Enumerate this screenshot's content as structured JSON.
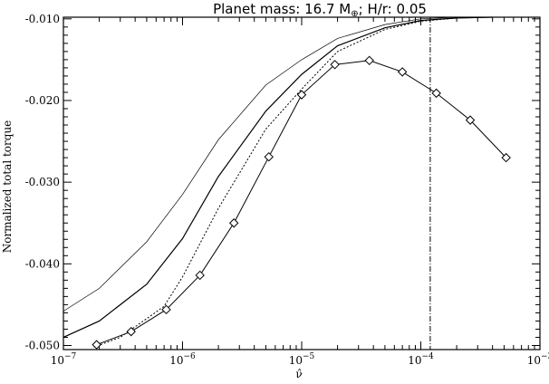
{
  "chart_data": {
    "type": "line",
    "title": {
      "prefix": "Planet mass: 16.7 M",
      "subscript": "⊕",
      "suffix": "; H/r: 0.05"
    },
    "xlabel": "ν̂",
    "ylabel": "Normalized total torque",
    "x_scale": "log",
    "xlim": [
      1e-07,
      0.001
    ],
    "ylim": [
      -0.0505,
      -0.0098
    ],
    "x_ticks": [
      {
        "value": 1e-07,
        "base": "10",
        "exp": "−7"
      },
      {
        "value": 1e-06,
        "base": "10",
        "exp": "−6"
      },
      {
        "value": 1e-05,
        "base": "10",
        "exp": "−5"
      },
      {
        "value": 0.0001,
        "base": "10",
        "exp": "−4"
      },
      {
        "value": 0.001,
        "base": "10",
        "exp": "−3"
      }
    ],
    "y_ticks": [
      {
        "value": -0.01,
        "label": "-0.010"
      },
      {
        "value": -0.02,
        "label": "-0.020"
      },
      {
        "value": -0.03,
        "label": "-0.030"
      },
      {
        "value": -0.04,
        "label": "-0.040"
      },
      {
        "value": -0.05,
        "label": "-0.050"
      }
    ],
    "grid": false,
    "vertical_line": {
      "x": 0.00012,
      "style": "dash-dot"
    },
    "series": [
      {
        "style": "thin-solid",
        "markers": false,
        "x": [
          1e-07,
          2e-07,
          5e-07,
          1e-06,
          2e-06,
          5e-06,
          1e-05,
          2e-05,
          5e-05,
          0.0001,
          0.0002,
          0.0004
        ],
        "y": [
          -0.0458,
          -0.043,
          -0.0373,
          -0.0315,
          -0.0248,
          -0.0181,
          -0.015,
          -0.0124,
          -0.0107,
          -0.01,
          -0.0098,
          -0.0098
        ]
      },
      {
        "style": "solid",
        "markers": false,
        "x": [
          1e-07,
          2e-07,
          5e-07,
          1e-06,
          2e-06,
          5e-06,
          1e-05,
          2e-05,
          5e-05,
          0.0001,
          0.0002,
          0.0004
        ],
        "y": [
          -0.049,
          -0.047,
          -0.0425,
          -0.0369,
          -0.0293,
          -0.0213,
          -0.0168,
          -0.0133,
          -0.0111,
          -0.0102,
          -0.0099,
          -0.0098
        ]
      },
      {
        "style": "dotted",
        "markers": false,
        "x": [
          1.8e-07,
          3e-07,
          7e-07,
          1e-06,
          2e-06,
          5e-06,
          1e-05,
          2e-05,
          5e-05,
          0.0001,
          0.0002,
          0.0004
        ],
        "y": [
          -0.0502,
          -0.049,
          -0.0452,
          -0.0416,
          -0.0332,
          -0.0235,
          -0.0186,
          -0.014,
          -0.0113,
          -0.0103,
          -0.0099,
          -0.0098
        ]
      },
      {
        "style": "solid-diamond",
        "markers": true,
        "x": [
          1.9e-07,
          3.7e-07,
          7.3e-07,
          1.4e-06,
          2.7e-06,
          5.3e-06,
          1e-05,
          1.9e-05,
          3.7e-05,
          7e-05,
          0.000135,
          0.00026,
          0.00052
        ],
        "y": [
          -0.0499,
          -0.0483,
          -0.0456,
          -0.0414,
          -0.035,
          -0.0269,
          -0.0193,
          -0.0156,
          -0.0151,
          -0.0165,
          -0.0191,
          -0.0224,
          -0.027
        ]
      }
    ]
  }
}
